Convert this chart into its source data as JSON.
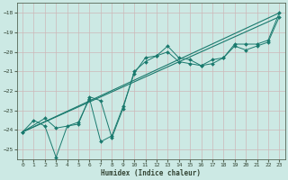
{
  "xlabel": "Humidex (Indice chaleur)",
  "ylabel": "",
  "bg_color": "#cce9e4",
  "grid_color": "#b0d8d2",
  "line_color": "#1a7a6e",
  "xlim": [
    -0.5,
    23.5
  ],
  "ylim": [
    -25.5,
    -17.5
  ],
  "xticks": [
    0,
    1,
    2,
    3,
    4,
    5,
    6,
    7,
    8,
    9,
    10,
    11,
    12,
    13,
    14,
    15,
    16,
    17,
    18,
    19,
    20,
    21,
    22,
    23
  ],
  "yticks": [
    -25,
    -24,
    -23,
    -22,
    -21,
    -20,
    -19,
    -18
  ],
  "series1_x": [
    0,
    1,
    2,
    3,
    4,
    5,
    6,
    7,
    8,
    9,
    10,
    11,
    12,
    13,
    14,
    15,
    16,
    17,
    18,
    19,
    20,
    21,
    22,
    23
  ],
  "series1_y": [
    -24.1,
    -23.5,
    -23.8,
    -25.4,
    -23.8,
    -23.6,
    -22.4,
    -24.6,
    -24.3,
    -22.8,
    -21.1,
    -20.3,
    -20.2,
    -19.7,
    -20.3,
    -20.4,
    -20.7,
    -20.4,
    -20.3,
    -19.6,
    -19.6,
    -19.6,
    -19.4,
    -18.0
  ],
  "series2_x": [
    0,
    2,
    3,
    5,
    6,
    7,
    8,
    9,
    10,
    11,
    12,
    13,
    14,
    15,
    16,
    17,
    18,
    19,
    20,
    21,
    22,
    23
  ],
  "series2_y": [
    -24.1,
    -23.4,
    -23.9,
    -23.7,
    -22.3,
    -22.5,
    -24.4,
    -22.9,
    -21.0,
    -20.5,
    -20.2,
    -20.0,
    -20.5,
    -20.6,
    -20.7,
    -20.6,
    -20.3,
    -19.7,
    -19.9,
    -19.7,
    -19.5,
    -18.2
  ],
  "series3_x": [
    0,
    23
  ],
  "series3_y": [
    -24.1,
    -18.0
  ],
  "series4_x": [
    0,
    23
  ],
  "series4_y": [
    -24.1,
    -18.2
  ]
}
